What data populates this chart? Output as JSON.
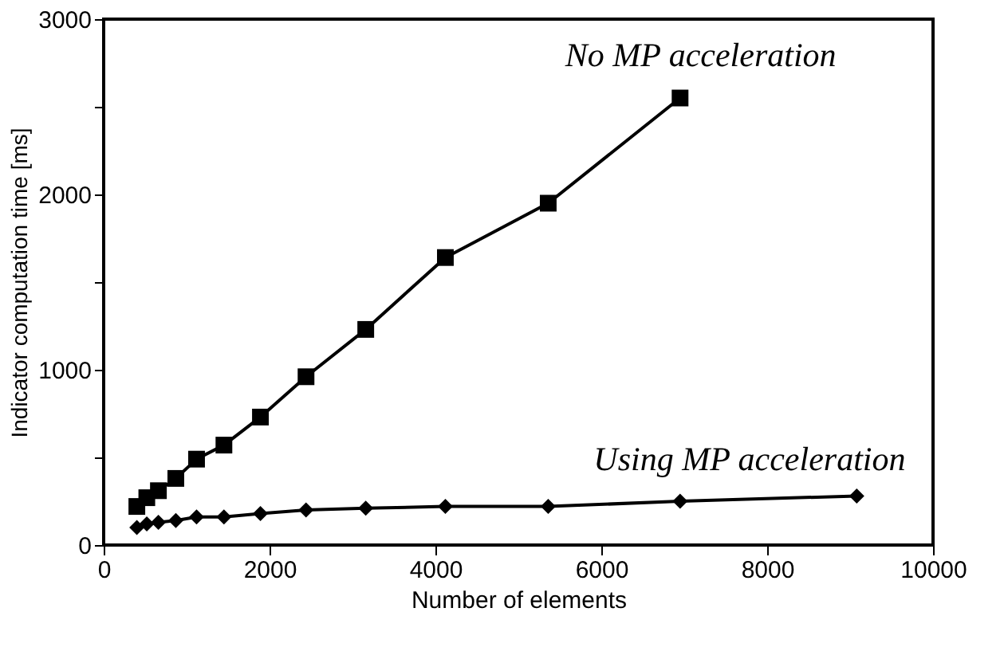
{
  "chart_data": {
    "type": "line",
    "xlabel": "Number of elements",
    "ylabel": "Indicator computation time [ms]",
    "xlim": [
      0,
      10000
    ],
    "xticks": [
      0,
      2000,
      4000,
      6000,
      8000,
      10000
    ],
    "ylim": [
      0,
      3000
    ],
    "yticks": [
      0,
      {
        "value": 500,
        "label": null
      },
      1000,
      {
        "value": 1500,
        "label": null
      },
      2000,
      {
        "value": 2500,
        "label": null
      },
      3000
    ],
    "grid": false,
    "line_style": "solid",
    "series": [
      {
        "name": "No MP acceleration",
        "color": "#000000",
        "marker": "square",
        "x": [
          400,
          520,
          660,
          870,
          1120,
          1450,
          1890,
          2440,
          3160,
          4120,
          5360,
          6950
        ],
        "values": [
          220,
          270,
          310,
          380,
          490,
          570,
          730,
          960,
          1230,
          1640,
          1950,
          2550
        ]
      },
      {
        "name": "Using MP acceleration",
        "color": "#000000",
        "marker": "diamond",
        "x": [
          400,
          520,
          660,
          870,
          1120,
          1450,
          1890,
          2440,
          3160,
          4120,
          5360,
          6950,
          9080
        ],
        "values": [
          100,
          120,
          130,
          140,
          160,
          160,
          180,
          200,
          210,
          220,
          220,
          250,
          280
        ]
      }
    ]
  }
}
